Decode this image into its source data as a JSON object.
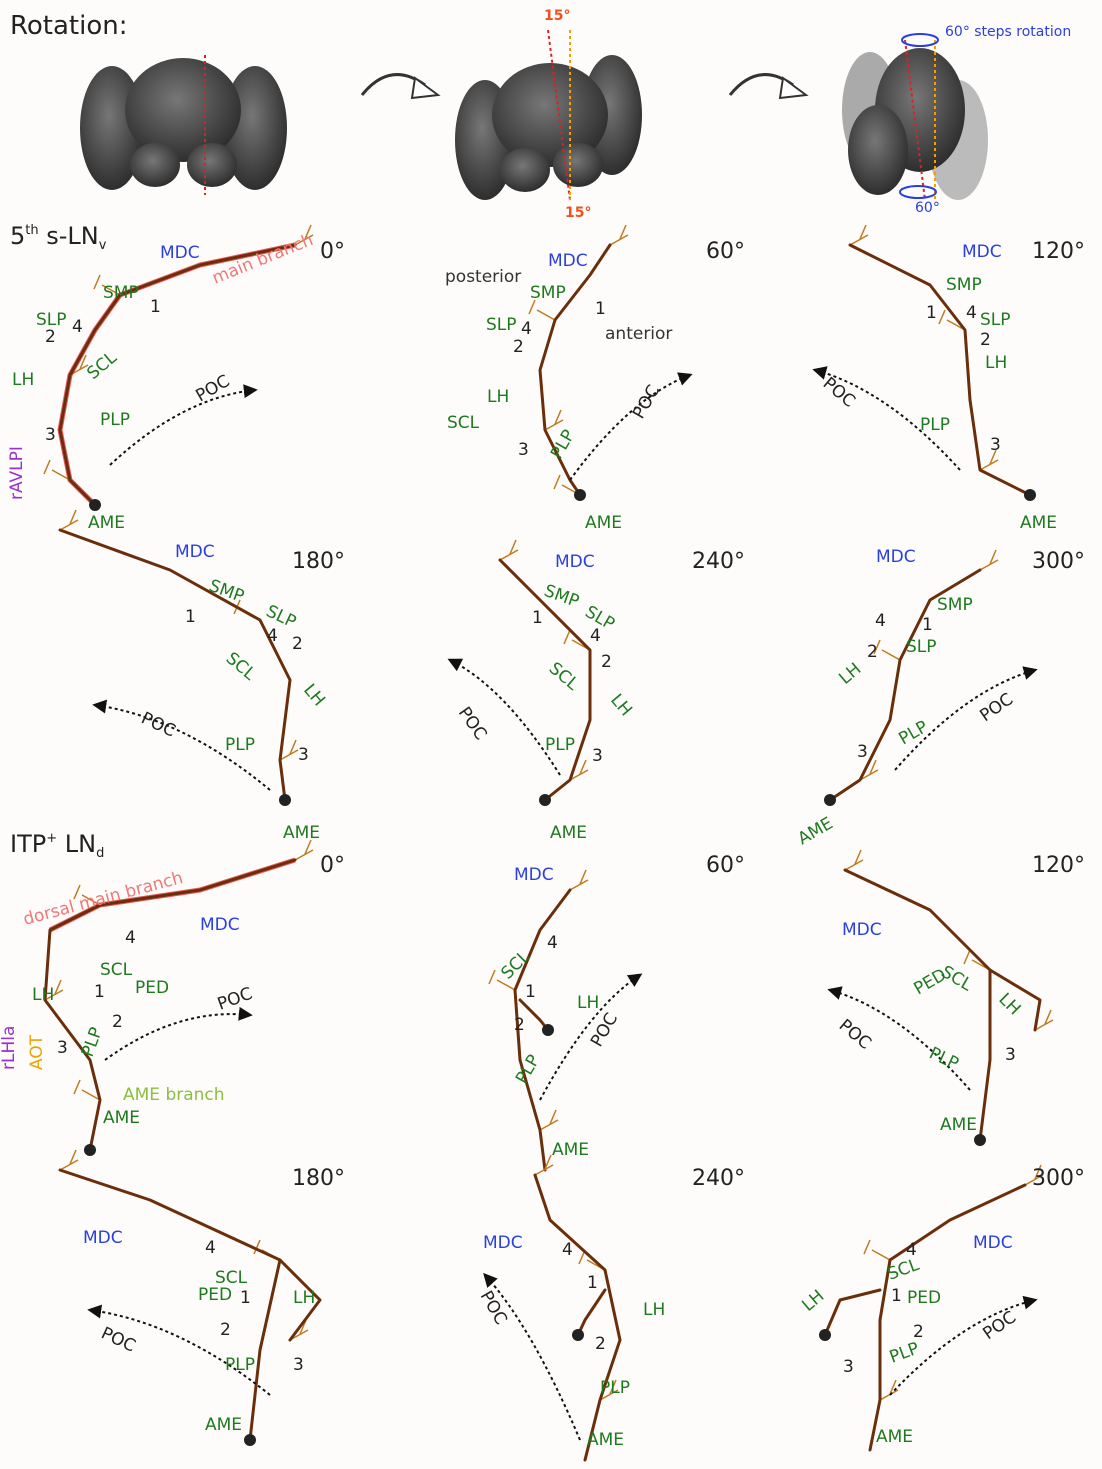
{
  "header": {
    "title": "Rotation:"
  },
  "rotation": {
    "tilt_top": "15°",
    "tilt_bottom": "15°",
    "steps": "60° steps rotation",
    "step_angle": "60°"
  },
  "sections": [
    {
      "title": [
        "5",
        "th",
        " s-LN",
        "v"
      ],
      "panels": [
        {
          "angle": "0°",
          "labels": [
            "MDC",
            "main branch",
            "SMP",
            "1",
            "SLP",
            "4",
            "2",
            "LH",
            "SCL",
            "PLP",
            "3",
            "POC",
            "rAVLPI",
            "AME"
          ]
        },
        {
          "angle": "60°",
          "labels": [
            "MDC",
            "SMP",
            "1",
            "posterior",
            "SLP",
            "4",
            "2",
            "anterior",
            "LH",
            "SCL",
            "3",
            "PLP",
            "POC",
            "AME"
          ]
        },
        {
          "angle": "120°",
          "labels": [
            "MDC",
            "SMP",
            "1",
            "4",
            "SLP",
            "2",
            "LH",
            "POC",
            "PLP",
            "3",
            "AME"
          ]
        },
        {
          "angle": "180°",
          "labels": [
            "MDC",
            "SMP",
            "SLP",
            "1",
            "4",
            "2",
            "SCL",
            "LH",
            "POC",
            "PLP",
            "3",
            "AME"
          ]
        },
        {
          "angle": "240°",
          "labels": [
            "MDC",
            "SMP",
            "SLP",
            "1",
            "4",
            "2",
            "SCL",
            "LH",
            "POC",
            "PLP",
            "3",
            "AME"
          ]
        },
        {
          "angle": "300°",
          "labels": [
            "MDC",
            "SMP",
            "4",
            "1",
            "2",
            "SLP",
            "LH",
            "POC",
            "PLP",
            "3",
            "AME"
          ]
        }
      ]
    },
    {
      "title": [
        "ITP",
        "+",
        " LN",
        "d"
      ],
      "panels": [
        {
          "angle": "0°",
          "labels": [
            "dorsal main branch",
            "MDC",
            "4",
            "SCL",
            "1",
            "PED",
            "LH",
            "POC",
            "2",
            "rLHla",
            "AOT",
            "3",
            "PLP",
            "AME branch",
            "AME"
          ]
        },
        {
          "angle": "60°",
          "labels": [
            "MDC",
            "4",
            "SCL",
            "1",
            "LH",
            "2",
            "POC",
            "PLP",
            "AME"
          ]
        },
        {
          "angle": "120°",
          "labels": [
            "MDC",
            "SCL",
            "PED",
            "LH",
            "POC",
            "PLP",
            "3",
            "AME"
          ]
        },
        {
          "angle": "180°",
          "labels": [
            "MDC",
            "4",
            "SCL",
            "PED",
            "1",
            "LH",
            "2",
            "POC",
            "PLP",
            "3",
            "AME"
          ]
        },
        {
          "angle": "240°",
          "labels": [
            "MDC",
            "4",
            "1",
            "LH",
            "2",
            "POC",
            "PLP",
            "AME"
          ]
        },
        {
          "angle": "300°",
          "labels": [
            "MDC",
            "4",
            "SCL",
            "PED",
            "1",
            "LH",
            "2",
            "POC",
            "PLP",
            "3",
            "AME"
          ]
        }
      ]
    }
  ]
}
